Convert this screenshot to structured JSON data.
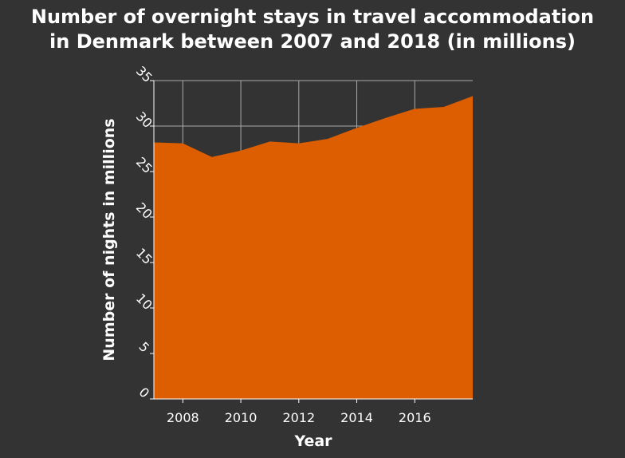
{
  "chart_data": {
    "type": "area",
    "title_lines": [
      "Number of overnight stays in travel accommodation",
      "in Denmark between 2007 and 2018 (in millions)"
    ],
    "xlabel": "Year",
    "ylabel": "Number of nights in millions",
    "x": [
      2007,
      2008,
      2009,
      2010,
      2011,
      2012,
      2013,
      2014,
      2015,
      2016,
      2017,
      2018
    ],
    "series": [
      {
        "values": [
          28.2,
          28.1,
          26.6,
          27.3,
          28.3,
          28.1,
          28.6,
          29.8,
          30.9,
          31.9,
          32.1,
          33.3
        ]
      }
    ],
    "xlim": [
      2007,
      2018
    ],
    "ylim": [
      0,
      35
    ],
    "xticks": [
      2008,
      2010,
      2012,
      2014,
      2016
    ],
    "yticks": [
      0,
      5,
      10,
      15,
      20,
      25,
      30,
      35
    ],
    "grid": true,
    "colors": {
      "background": "#333333",
      "area_fill": "#dd5e00",
      "grid": "#aaaaaa",
      "text": "#ffffff"
    }
  }
}
